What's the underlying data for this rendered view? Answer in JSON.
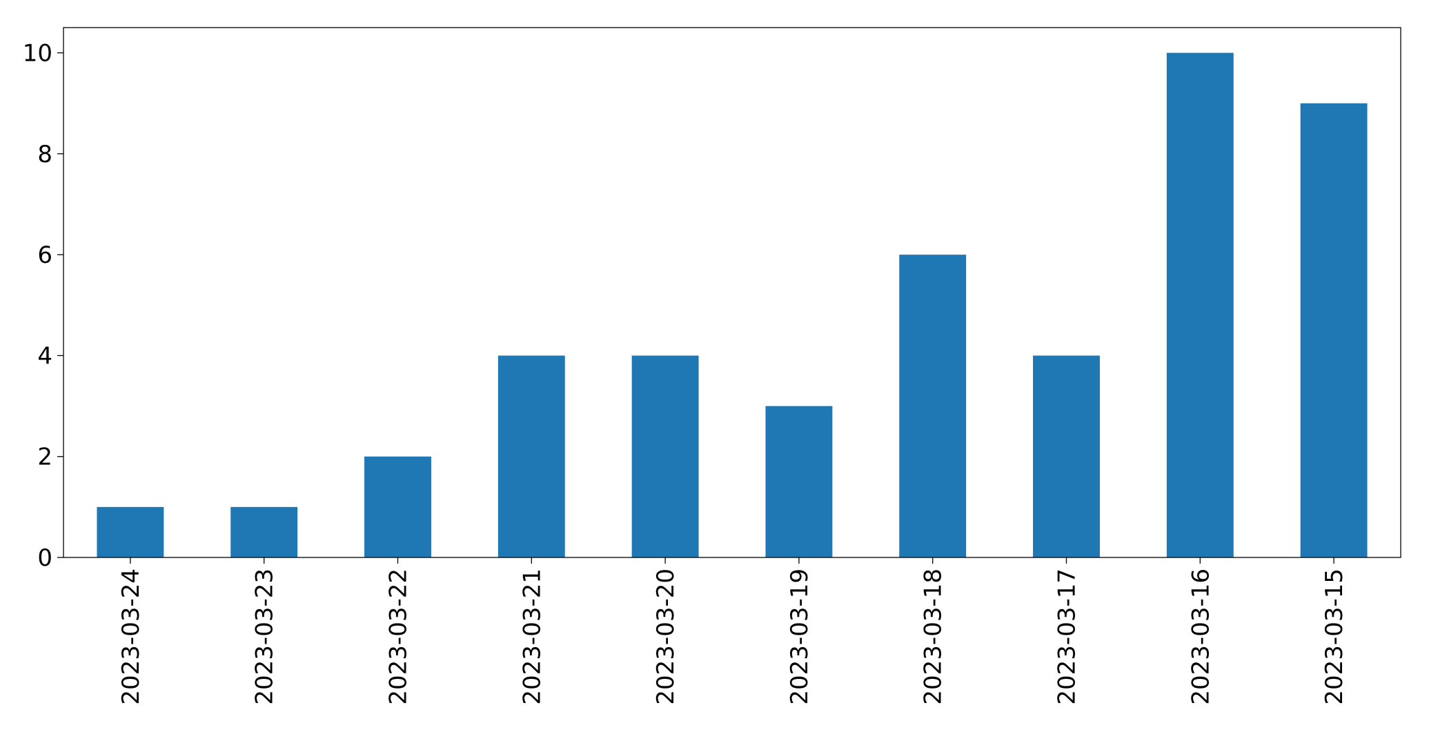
{
  "chart_data": {
    "type": "bar",
    "categories": [
      "2023-03-24",
      "2023-03-23",
      "2023-03-22",
      "2023-03-21",
      "2023-03-20",
      "2023-03-19",
      "2023-03-18",
      "2023-03-17",
      "2023-03-16",
      "2023-03-15"
    ],
    "values": [
      1,
      1,
      2,
      4,
      4,
      3,
      6,
      4,
      10,
      9
    ],
    "color": "#1f77b4",
    "ylim": [
      0,
      10.5
    ],
    "yticks": [
      0,
      2,
      4,
      6,
      8,
      10
    ],
    "grid": false
  }
}
